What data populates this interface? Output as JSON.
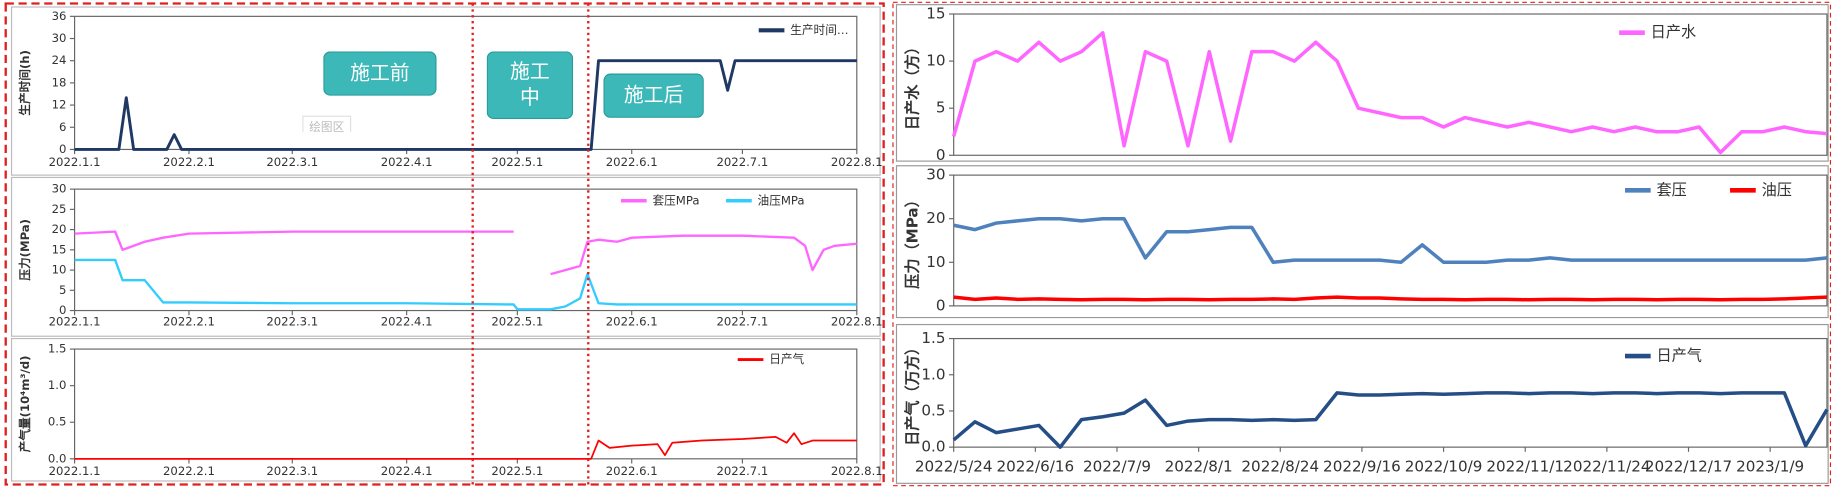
{
  "chart_data": [
    {
      "type": "line",
      "y_label": "生产时间(h)",
      "legend": "upper right",
      "annotations": [
        "施工前",
        "施工中",
        "施工后",
        "绘图区"
      ],
      "x": [
        "2022.1.1",
        "2022.1.13",
        "2022.1.15",
        "2022.1.17",
        "2022.1.26",
        "2022.1.28",
        "2022.1.30",
        "2022.5.21",
        "2022.5.23",
        "2022.6.25",
        "2022.6.27",
        "2022.6.28",
        "2022.6.29",
        "2022.8.1"
      ],
      "series": [
        {
          "name": "生产时间…",
          "color": "#1f3864",
          "values": [
            0,
            0,
            14,
            0,
            0,
            4,
            0,
            0,
            24,
            24,
            16,
            20,
            24,
            24
          ]
        }
      ],
      "xlim": [
        "2022.1.1",
        "2022.8.1"
      ],
      "xticks": [
        "2022.1.1",
        "2022.2.1",
        "2022.3.1",
        "2022.4.1",
        "2022.5.1",
        "2022.6.1",
        "2022.7.1",
        "2022.8.1"
      ],
      "ylim": [
        0,
        36
      ],
      "yticks": [
        0,
        6,
        12,
        18,
        24,
        30,
        36
      ]
    },
    {
      "type": "line",
      "y_label": "压力(MPa)",
      "legend": "upper right",
      "x": [
        "2022.1.1",
        "2022.1.12",
        "2022.1.14",
        "2022.1.20",
        "2022.1.25",
        "2022.2.1",
        "2022.3.1",
        "2022.4.1",
        "2022.4.30",
        "2022.5.1",
        "2022.5.10",
        "2022.5.14",
        "2022.5.18",
        "2022.5.20",
        "2022.5.23",
        "2022.5.28",
        "2022.6.1",
        "2022.6.15",
        "2022.7.1",
        "2022.7.15",
        "2022.7.18",
        "2022.7.20",
        "2022.7.23",
        "2022.7.26",
        "2022.8.1"
      ],
      "series": [
        {
          "name": "套压MPa",
          "color": "#ff66ff",
          "values": [
            19,
            19.5,
            15,
            17,
            18,
            19,
            19.5,
            19.5,
            19.5,
            null,
            9,
            10,
            11,
            17,
            17.5,
            17,
            18,
            18.5,
            18.5,
            18,
            16,
            10,
            15,
            16,
            16.5
          ]
        },
        {
          "name": "油压MPa",
          "color": "#33ccff",
          "values": [
            12.5,
            12.5,
            7.5,
            7.5,
            2,
            2,
            1.8,
            1.8,
            1.5,
            0.3,
            0.3,
            1,
            3,
            9,
            1.8,
            1.5,
            1.5,
            1.5,
            1.5,
            1.5,
            1.5,
            1.5,
            1.5,
            1.5,
            1.5
          ]
        }
      ],
      "xlim": [
        "2022.1.1",
        "2022.8.1"
      ],
      "xticks": [
        "2022.1.1",
        "2022.2.1",
        "2022.3.1",
        "2022.4.1",
        "2022.5.1",
        "2022.6.1",
        "2022.7.1",
        "2022.8.1"
      ],
      "ylim": [
        0,
        30
      ],
      "yticks": [
        0,
        5,
        10,
        15,
        20,
        25,
        30
      ]
    },
    {
      "type": "line",
      "y_label": "产气量(10⁴m³/d)",
      "legend": "upper right",
      "x": [
        "2022.1.1",
        "2022.5.21",
        "2022.5.23",
        "2022.5.26",
        "2022.6.1",
        "2022.6.8",
        "2022.6.10",
        "2022.6.12",
        "2022.6.20",
        "2022.7.1",
        "2022.7.10",
        "2022.7.13",
        "2022.7.15",
        "2022.7.17",
        "2022.7.20",
        "2022.8.1"
      ],
      "series": [
        {
          "name": "日产气",
          "color": "#ff0000",
          "values": [
            0,
            0,
            0.25,
            0.15,
            0.18,
            0.2,
            0.05,
            0.22,
            0.25,
            0.27,
            0.3,
            0.22,
            0.35,
            0.2,
            0.25,
            0.25
          ]
        }
      ],
      "xlim": [
        "2022.1.1",
        "2022.8.1"
      ],
      "xticks": [
        "2022.1.1",
        "2022.2.1",
        "2022.3.1",
        "2022.4.1",
        "2022.5.1",
        "2022.6.1",
        "2022.7.1",
        "2022.8.1"
      ],
      "ylim": [
        0,
        1.5
      ],
      "yticks": [
        {
          "value": 0,
          "label": "0.0"
        },
        0.5,
        {
          "value": 1,
          "label": "1.0"
        },
        1.5
      ]
    },
    {
      "type": "line",
      "y_label": "日产水（方）",
      "legend": "upper right",
      "x": [
        "2022/5/24",
        "2022/5/30",
        "2022/6/5",
        "2022/6/11",
        "2022/6/17",
        "2022/6/23",
        "2022/6/29",
        "2022/7/5",
        "2022/7/11",
        "2022/7/17",
        "2022/7/23",
        "2022/7/29",
        "2022/8/4",
        "2022/8/10",
        "2022/8/16",
        "2022/8/22",
        "2022/8/28",
        "2022/9/3",
        "2022/9/9",
        "2022/9/15",
        "2022/9/21",
        "2022/9/27",
        "2022/10/3",
        "2022/10/9",
        "2022/10/15",
        "2022/10/21",
        "2022/10/27",
        "2022/11/2",
        "2022/11/8",
        "2022/11/14",
        "2022/11/20",
        "2022/11/26",
        "2022/12/2",
        "2022/12/8",
        "2022/12/14",
        "2022/12/20",
        "2022/12/26",
        "2023/1/1",
        "2023/1/7",
        "2023/1/13",
        "2023/1/19",
        "2023/1/25"
      ],
      "series": [
        {
          "name": "日产水",
          "color": "#ff66ff",
          "values": [
            2,
            10,
            11,
            10,
            12,
            10,
            11,
            13,
            1,
            11,
            10,
            1,
            11,
            1.5,
            11,
            11,
            10,
            12,
            10,
            5,
            4.5,
            4,
            4,
            3,
            4,
            3.5,
            3,
            3.5,
            3,
            2.5,
            3,
            2.5,
            3,
            2.5,
            2.5,
            3,
            0.3,
            2.5,
            2.5,
            3,
            2.5,
            2.3
          ]
        }
      ],
      "xlim": [
        "2022/5/24",
        "2023/1/25"
      ],
      "ylim": [
        0,
        15
      ],
      "yticks": [
        0,
        5,
        10,
        15
      ]
    },
    {
      "type": "line",
      "y_label": "压力（MPa）",
      "legend": "upper right",
      "x": [
        "2022/5/24",
        "2022/5/30",
        "2022/6/5",
        "2022/6/11",
        "2022/6/17",
        "2022/6/23",
        "2022/6/29",
        "2022/7/5",
        "2022/7/11",
        "2022/7/17",
        "2022/7/23",
        "2022/7/29",
        "2022/8/4",
        "2022/8/10",
        "2022/8/16",
        "2022/8/22",
        "2022/8/28",
        "2022/9/3",
        "2022/9/9",
        "2022/9/15",
        "2022/9/21",
        "2022/9/27",
        "2022/10/3",
        "2022/10/9",
        "2022/10/15",
        "2022/10/21",
        "2022/10/27",
        "2022/11/2",
        "2022/11/8",
        "2022/11/14",
        "2022/11/20",
        "2022/11/26",
        "2022/12/2",
        "2022/12/8",
        "2022/12/14",
        "2022/12/20",
        "2022/12/26",
        "2023/1/1",
        "2023/1/7",
        "2023/1/13",
        "2023/1/19",
        "2023/1/25"
      ],
      "series": [
        {
          "name": "套压",
          "color": "#4f81bd",
          "values": [
            18.5,
            17.5,
            19,
            19.5,
            20,
            20,
            19.5,
            20,
            20,
            11,
            17,
            17,
            17.5,
            18,
            18,
            10,
            10.5,
            10.5,
            10.5,
            10.5,
            10.5,
            10,
            14,
            10,
            10,
            10,
            10.5,
            10.5,
            11,
            10.5,
            10.5,
            10.5,
            10.5,
            10.5,
            10.5,
            10.5,
            10.5,
            10.5,
            10.5,
            10.5,
            10.5,
            11
          ]
        },
        {
          "name": "油压",
          "color": "#ff0000",
          "values": [
            2,
            1.5,
            1.8,
            1.5,
            1.6,
            1.5,
            1.4,
            1.5,
            1.5,
            1.4,
            1.5,
            1.5,
            1.4,
            1.5,
            1.5,
            1.6,
            1.5,
            1.8,
            2,
            1.8,
            1.8,
            1.6,
            1.5,
            1.5,
            1.4,
            1.5,
            1.5,
            1.4,
            1.5,
            1.5,
            1.4,
            1.5,
            1.5,
            1.4,
            1.5,
            1.5,
            1.4,
            1.5,
            1.5,
            1.6,
            1.8,
            2
          ]
        }
      ],
      "xlim": [
        "2022/5/24",
        "2023/1/25"
      ],
      "ylim": [
        0,
        30
      ],
      "yticks": [
        0,
        10,
        20,
        30
      ]
    },
    {
      "type": "line",
      "y_label": "日产气（万方）",
      "legend": "upper right",
      "x": [
        "2022/5/24",
        "2022/5/30",
        "2022/6/5",
        "2022/6/11",
        "2022/6/17",
        "2022/6/23",
        "2022/6/29",
        "2022/7/5",
        "2022/7/11",
        "2022/7/17",
        "2022/7/23",
        "2022/7/29",
        "2022/8/4",
        "2022/8/10",
        "2022/8/16",
        "2022/8/22",
        "2022/8/28",
        "2022/9/3",
        "2022/9/9",
        "2022/9/15",
        "2022/9/21",
        "2022/9/27",
        "2022/10/3",
        "2022/10/9",
        "2022/10/15",
        "2022/10/21",
        "2022/10/27",
        "2022/11/2",
        "2022/11/8",
        "2022/11/14",
        "2022/11/20",
        "2022/11/26",
        "2022/12/2",
        "2022/12/8",
        "2022/12/14",
        "2022/12/20",
        "2022/12/26",
        "2023/1/1",
        "2023/1/7",
        "2023/1/13",
        "2023/1/19",
        "2023/1/25"
      ],
      "series": [
        {
          "name": "日产气",
          "color": "#254e87",
          "values": [
            0.1,
            0.35,
            0.2,
            0.25,
            0.3,
            0,
            0.38,
            0.42,
            0.47,
            0.65,
            0.3,
            0.36,
            0.38,
            0.38,
            0.37,
            0.38,
            0.37,
            0.38,
            0.75,
            0.72,
            0.72,
            0.73,
            0.74,
            0.73,
            0.74,
            0.75,
            0.75,
            0.74,
            0.75,
            0.75,
            0.74,
            0.75,
            0.75,
            0.74,
            0.75,
            0.75,
            0.74,
            0.75,
            0.75,
            0.75,
            0.02,
            0.52
          ]
        }
      ],
      "xlim": [
        "2022/5/24",
        "2023/1/25"
      ],
      "xticks": [
        "2022/5/24",
        "2022/6/16",
        "2022/7/9",
        "2022/8/1",
        "2022/8/24",
        "2022/9/16",
        "2022/10/9",
        "2022/11/1",
        "2022/11/24",
        "2022/12/17",
        "2023/1/9"
      ],
      "ylim": [
        0,
        1.5
      ],
      "yticks": [
        {
          "value": 0,
          "label": "0.0"
        },
        0.5,
        {
          "value": 1,
          "label": "1.0"
        },
        1.5
      ]
    }
  ]
}
